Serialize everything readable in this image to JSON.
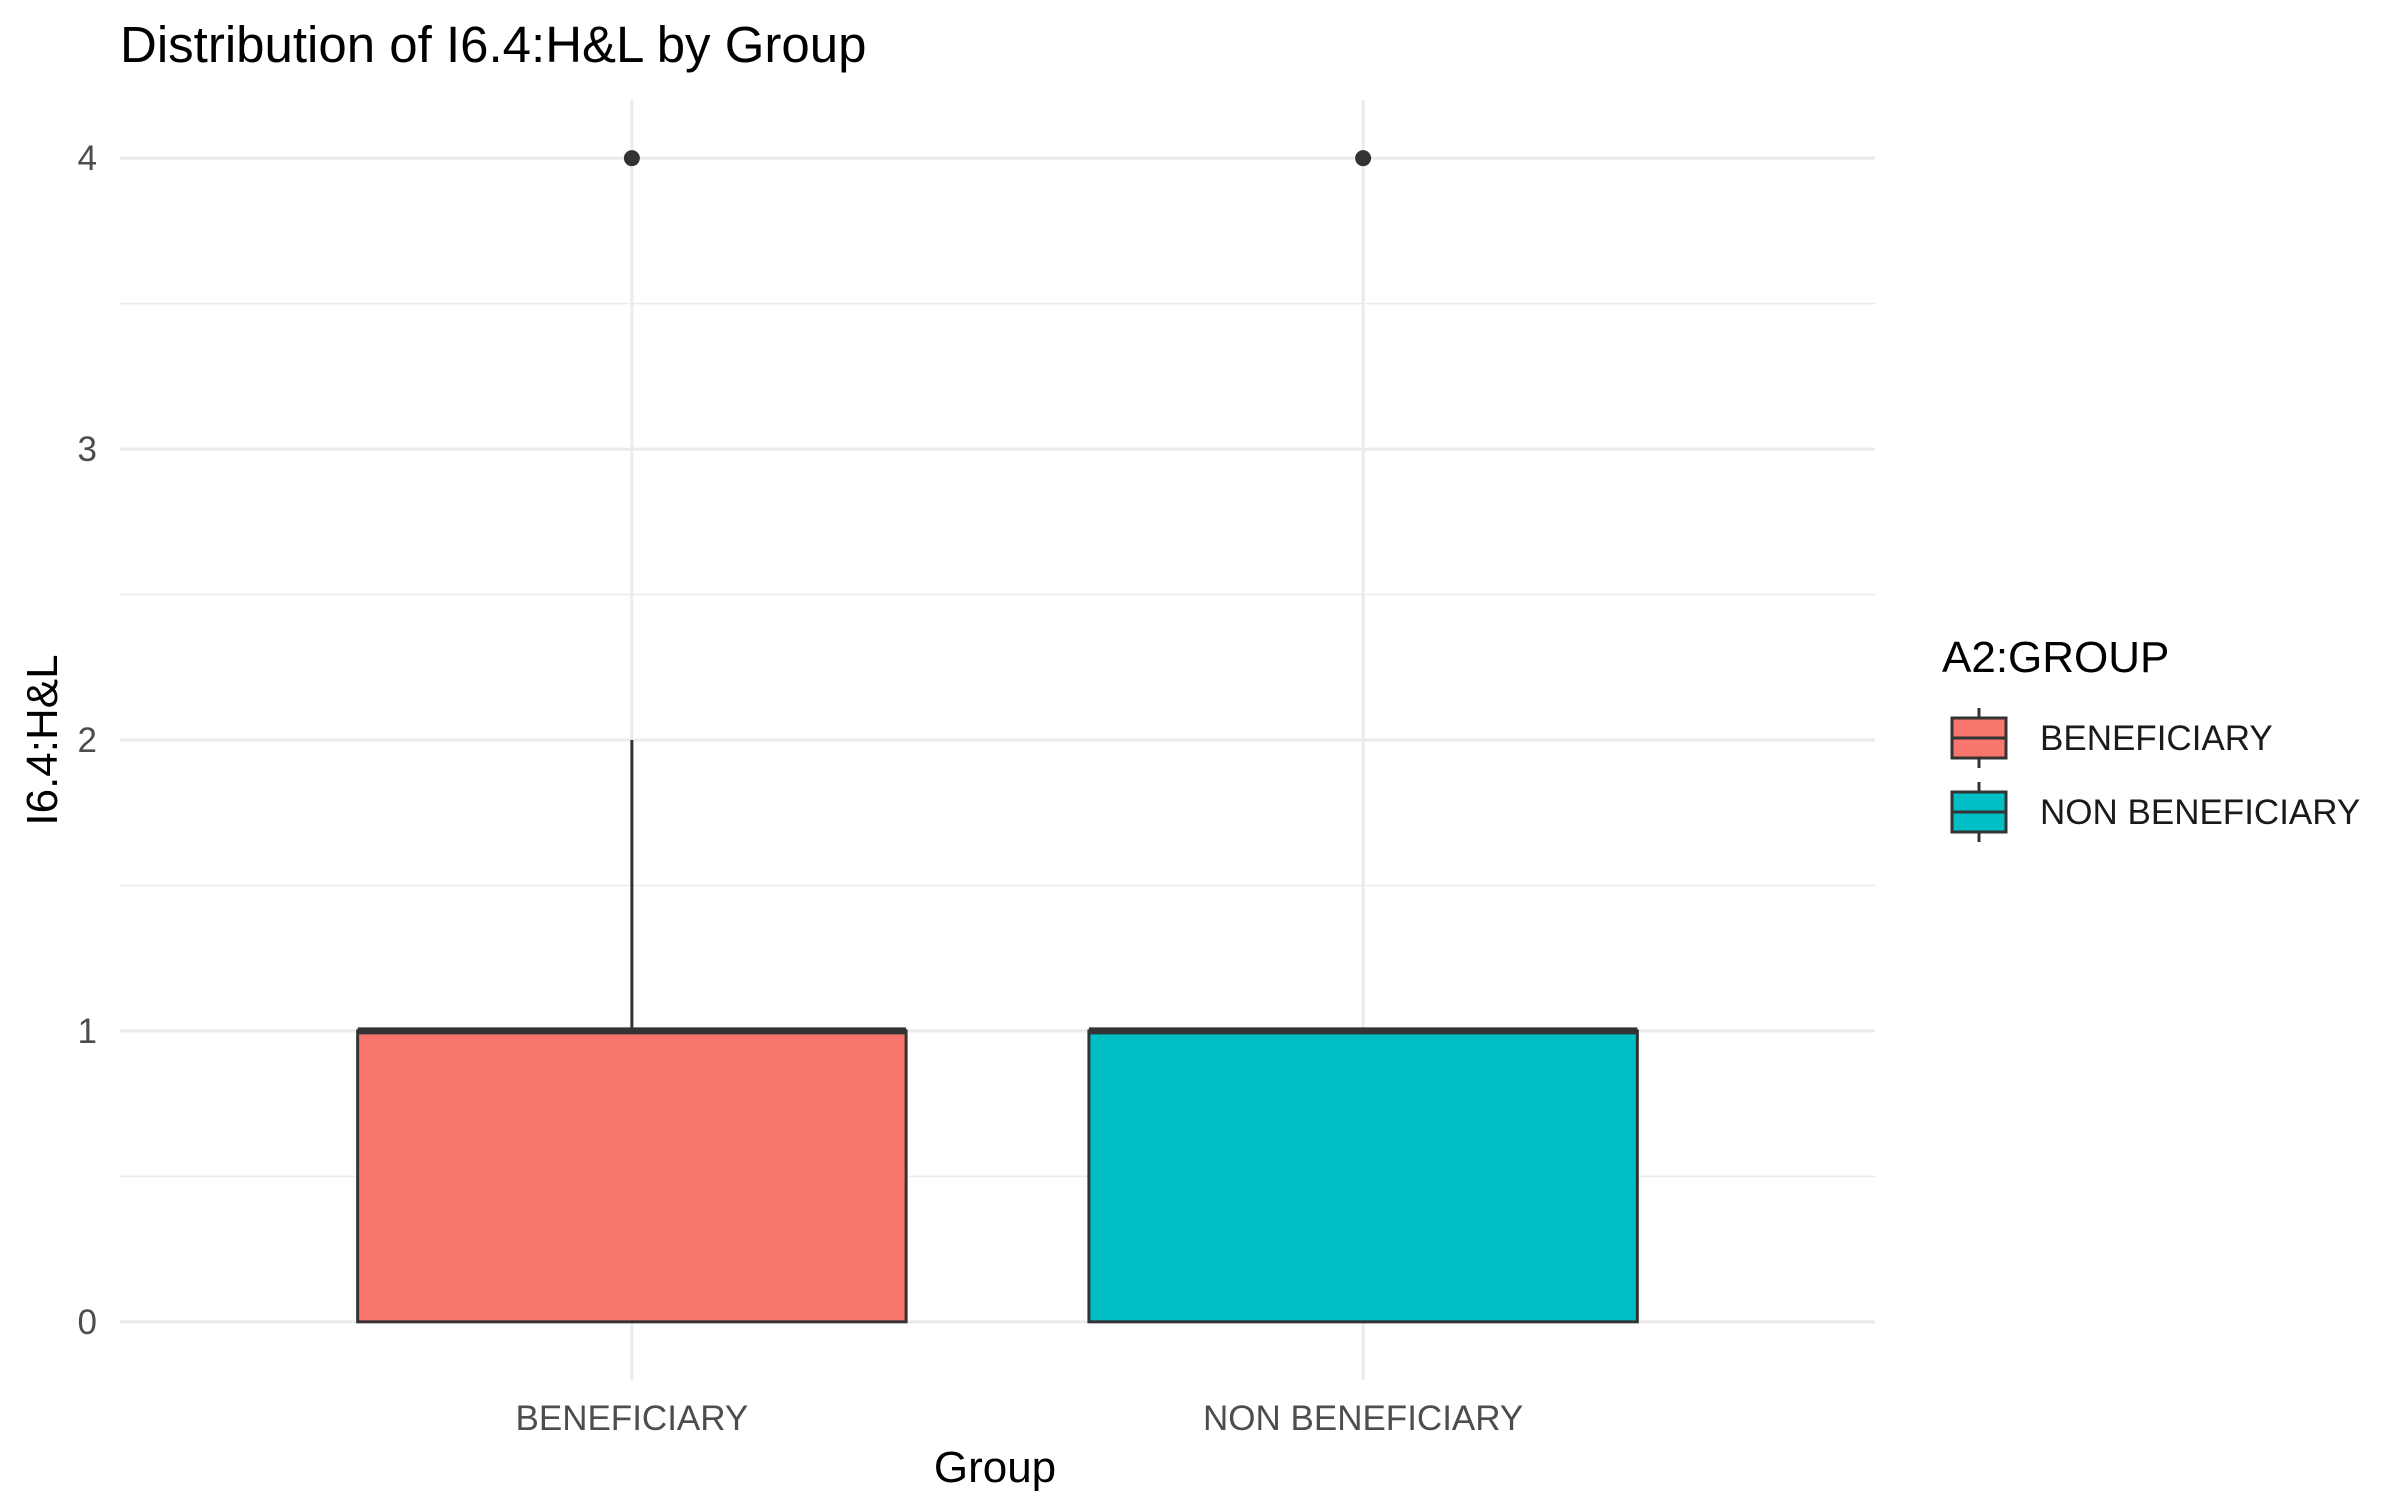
{
  "chart_data": {
    "type": "boxplot",
    "title": "Distribution of I6.4:H&L by Group",
    "xlabel": "Group",
    "ylabel": "I6.4:H&L",
    "categories": [
      "BENEFICIARY",
      "NON BENEFICIARY"
    ],
    "ylim": [
      -0.2,
      4.2
    ],
    "y_ticks": [
      0,
      1,
      2,
      3,
      4
    ],
    "grid": true,
    "legend": {
      "title": "A2:GROUP",
      "position": "right",
      "entries": [
        "BENEFICIARY",
        "NON BENEFICIARY"
      ]
    },
    "series": [
      {
        "category": "BENEFICIARY",
        "color": "#F8766D",
        "min": 0,
        "q1": 0,
        "median": 1,
        "q3": 1,
        "max": 2,
        "outliers": [
          4
        ]
      },
      {
        "category": "NON BENEFICIARY",
        "color": "#00BFC4",
        "min": 0,
        "q1": 0,
        "median": 1,
        "q3": 1,
        "max": 1,
        "outliers": [
          4
        ]
      }
    ]
  }
}
